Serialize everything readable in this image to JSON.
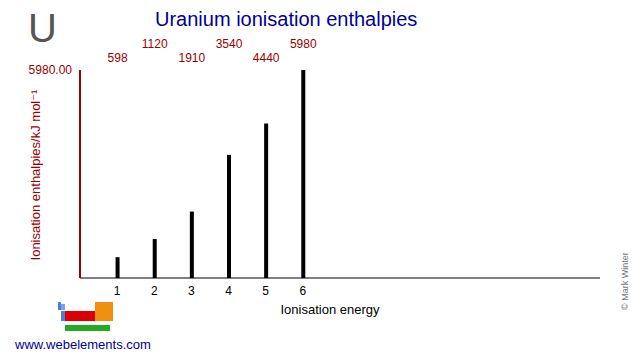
{
  "chart_data": {
    "type": "bar",
    "title": "Uranium ionisation enthalpies",
    "x_label": "Ionisation energy",
    "y_label": "Ionisation enthalpies/kJ mol⁻¹",
    "x": [
      1,
      2,
      3,
      4,
      5,
      6
    ],
    "values": [
      598,
      1120,
      1910,
      3540,
      4440,
      5980
    ],
    "color": "#000000",
    "xlim": [
      0,
      14
    ],
    "xticks": [
      1,
      2,
      3,
      4,
      5,
      6
    ],
    "ylim": [
      0,
      5980
    ],
    "yticks": [
      {
        "value": 5980,
        "label": "5980.00"
      }
    ],
    "grid": false,
    "data_labels": true,
    "annotations": {
      "symbol": "U",
      "website": "www.webelements.com",
      "copyright": "© Mark Winter"
    }
  }
}
